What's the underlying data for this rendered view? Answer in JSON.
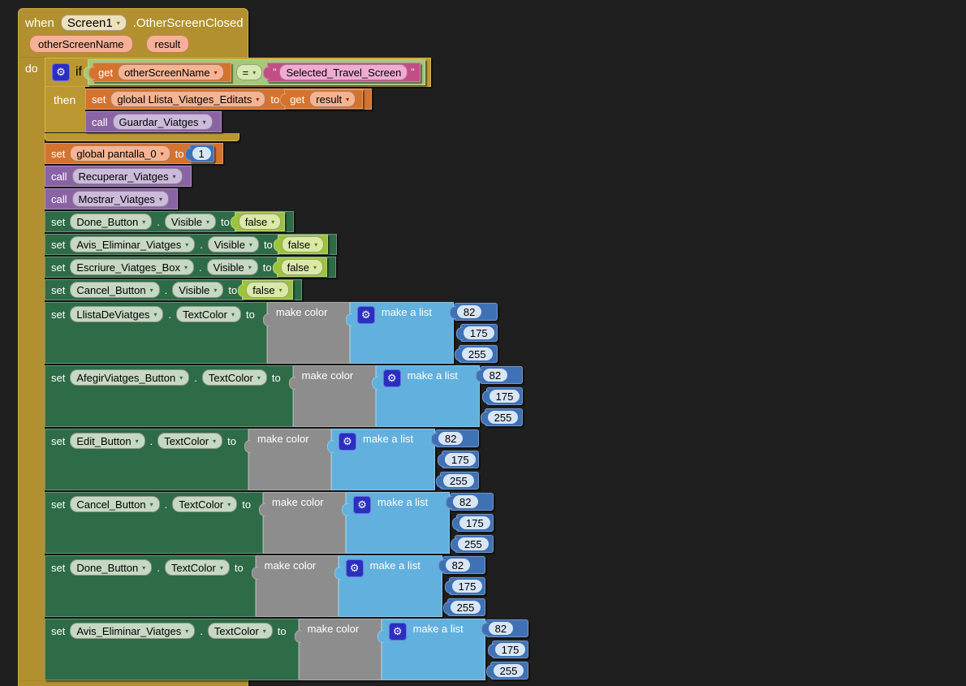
{
  "icons": {
    "dropdown": "▾",
    "gear": "⚙"
  },
  "colors": {
    "canvas_bg": "#1f1f1f",
    "event_gold": "#b2902f",
    "control_gold": "#bb9732",
    "variable_orange": "#d4732e",
    "procedure_purple": "#8a63a4",
    "setter_green": "#2e6b47",
    "logic_lime": "#9dc23c",
    "logic_green": "#a3c878",
    "text_pink": "#c14f85",
    "color_gray": "#8d8d8d",
    "list_blue": "#62b0dd",
    "math_blue": "#3f71b5",
    "mutator_blue": "#2a2fc0"
  },
  "kw": {
    "when": "when",
    "do": "do",
    "if": "if",
    "then": "then",
    "set": "set",
    "to": "to",
    "call": "call",
    "get": "get",
    "dot": ".",
    "make_color": "make color",
    "make_list": "make a list"
  },
  "event": {
    "component": "Screen1",
    "event_name": ".OtherScreenClosed",
    "param1": "otherScreenName",
    "param2": "result"
  },
  "cond": {
    "get_var": "otherScreenName",
    "op": "=",
    "quote": "\"",
    "text": "Selected_Travel_Screen"
  },
  "then_set": {
    "var": "global Llista_Viatges_Editats",
    "get_var": "result"
  },
  "then_call": {
    "proc": "Guardar_Viatges"
  },
  "pantalla_set": {
    "var": "global pantalla_0",
    "value": "1"
  },
  "calls": {
    "recuperar": "Recuperar_Viatges",
    "mostrar": "Mostrar_Viatges"
  },
  "visible_sets": [
    {
      "component": "Done_Button",
      "prop": "Visible",
      "value": "false"
    },
    {
      "component": "Avis_Eliminar_Viatges",
      "prop": "Visible",
      "value": "false"
    },
    {
      "component": "Escriure_Viatges_Box",
      "prop": "Visible",
      "value": "false"
    },
    {
      "component": "Cancel_Button",
      "prop": "Visible",
      "value": "false"
    }
  ],
  "textcolor_sets": [
    {
      "component": "LlistaDeViatges",
      "prop": "TextColor",
      "r": "82",
      "g": "175",
      "b": "255"
    },
    {
      "component": "AfegirViatges_Button",
      "prop": "TextColor",
      "r": "82",
      "g": "175",
      "b": "255"
    },
    {
      "component": "Edit_Button",
      "prop": "TextColor",
      "r": "82",
      "g": "175",
      "b": "255"
    },
    {
      "component": "Cancel_Button",
      "prop": "TextColor",
      "r": "82",
      "g": "175",
      "b": "255"
    },
    {
      "component": "Done_Button",
      "prop": "TextColor",
      "r": "82",
      "g": "175",
      "b": "255"
    },
    {
      "component": "Avis_Eliminar_Viatges",
      "prop": "TextColor",
      "r": "82",
      "g": "175",
      "b": "255"
    }
  ]
}
